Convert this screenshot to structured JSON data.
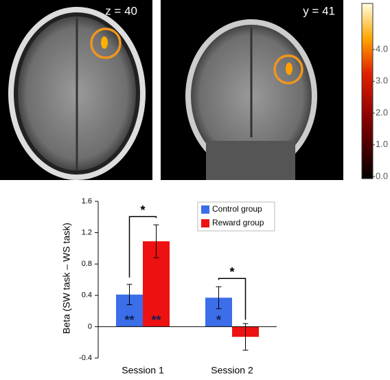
{
  "images": [
    {
      "label": "z = 40"
    },
    {
      "label": "y = 41"
    }
  ],
  "chart_data": [
    {
      "type": "colorbar",
      "ylim": [
        0,
        5.45
      ],
      "yticks": [
        {
          "value": 0,
          "label": "0.0"
        },
        {
          "value": 1,
          "label": "1.0"
        },
        {
          "value": 2,
          "label": "2.0"
        },
        {
          "value": 3,
          "label": "3.0"
        },
        {
          "value": 4,
          "label": "4.0"
        }
      ]
    },
    {
      "type": "bar",
      "y_label": "Beta (SW task – WS task)",
      "categories": [
        "Session 1",
        "Session 2"
      ],
      "series": [
        {
          "name": "Control group",
          "color": "#3b6ee8",
          "values": [
            0.41,
            0.37
          ],
          "errors": [
            0.13,
            0.14
          ]
        },
        {
          "name": "Reward group",
          "color": "#ee1111",
          "values": [
            1.09,
            -0.13
          ],
          "errors": [
            0.21,
            0.17
          ]
        }
      ],
      "ylim": [
        -0.4,
        1.6
      ],
      "yticks": [
        -0.4,
        0,
        0.4,
        0.8,
        1.2,
        1.6
      ],
      "annotations": [
        {
          "text": "**",
          "series": 0,
          "category": 0
        },
        {
          "text": "**",
          "series": 1,
          "category": 0
        },
        {
          "text": "*",
          "series": 0,
          "category": 1
        }
      ],
      "significance": [
        {
          "text": "*",
          "category": 0
        },
        {
          "text": "*",
          "category": 1
        }
      ]
    }
  ]
}
